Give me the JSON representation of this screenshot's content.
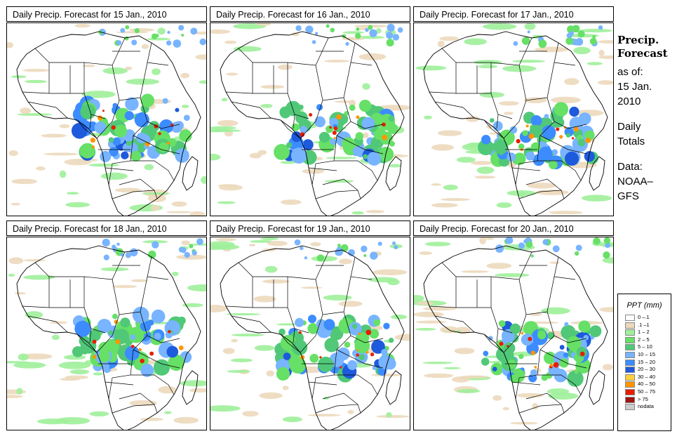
{
  "panels": [
    {
      "title": "Daily Precip. Forecast for  15 Jan., 2010"
    },
    {
      "title": "Daily Precip. Forecast for  16 Jan., 2010"
    },
    {
      "title": "Daily Precip. Forecast for  17 Jan., 2010"
    },
    {
      "title": "Daily Precip. Forecast for  18 Jan., 2010"
    },
    {
      "title": "Daily Precip. Forecast for  19 Jan., 2010"
    },
    {
      "title": "Daily Precip. Forecast for  20 Jan., 2010"
    }
  ],
  "side": {
    "heading_line1": "Precip.",
    "heading_line2": "Forecast",
    "asof_line1": "as of:",
    "asof_line2": "15 Jan.",
    "asof_line3": "2010",
    "totals_line1": "Daily",
    "totals_line2": "Totals",
    "data_line1": "Data:",
    "data_line2": "NOAA–",
    "data_line3": "GFS"
  },
  "legend": {
    "title": "PPT (mm)",
    "items": [
      {
        "label": "0 –.1",
        "color": "#ffffff"
      },
      {
        "label": ".1 –1",
        "color": "#ecd9bd"
      },
      {
        "label": "1 – 2",
        "color": "#9ef09a"
      },
      {
        "label": "2 – 5",
        "color": "#66e066"
      },
      {
        "label": "5 – 10",
        "color": "#50c878"
      },
      {
        "label": "10 – 15",
        "color": "#78b4ff"
      },
      {
        "label": "15 – 20",
        "color": "#3c8cff"
      },
      {
        "label": "20 – 30",
        "color": "#1e5adc"
      },
      {
        "label": "30 – 40",
        "color": "#ffd23c"
      },
      {
        "label": "40 – 50",
        "color": "#ff9600"
      },
      {
        "label": "50 – 75",
        "color": "#e61e00"
      },
      {
        "label": "> 75",
        "color": "#a01414"
      },
      {
        "label": "nodata",
        "color": "#cccccc"
      }
    ]
  }
}
